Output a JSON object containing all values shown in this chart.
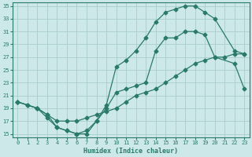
{
  "xlabel": "Humidex (Indice chaleur)",
  "background_color": "#cce8e8",
  "grid_color": "#aacccc",
  "line_color": "#2a7a6a",
  "xlim": [
    -0.5,
    23.5
  ],
  "ylim": [
    14.5,
    35.5
  ],
  "xticks": [
    0,
    1,
    2,
    3,
    4,
    5,
    6,
    7,
    8,
    9,
    10,
    11,
    12,
    13,
    14,
    15,
    16,
    17,
    18,
    19,
    20,
    21,
    22,
    23
  ],
  "yticks": [
    15,
    17,
    19,
    21,
    23,
    25,
    27,
    29,
    31,
    33,
    35
  ],
  "line1_x": [
    0,
    1,
    2,
    3,
    4,
    5,
    6,
    7,
    8,
    9,
    10,
    11,
    12,
    13,
    14,
    15,
    16,
    17,
    18,
    19,
    20,
    21,
    22,
    23
  ],
  "line1_y": [
    20,
    19.5,
    19,
    18,
    17,
    17,
    17,
    17.5,
    18,
    18.5,
    19,
    20,
    21,
    21.5,
    22,
    23,
    24,
    25,
    26,
    26.5,
    27,
    27,
    27.5,
    27.5
  ],
  "line2_x": [
    0,
    1,
    2,
    3,
    4,
    5,
    6,
    7,
    8,
    9,
    10,
    11,
    12,
    13,
    14,
    15,
    16,
    17,
    18,
    19,
    20,
    22,
    23
  ],
  "line2_y": [
    20,
    19.5,
    19,
    18,
    16,
    15.5,
    15,
    15,
    17,
    19.5,
    25.5,
    26.5,
    28,
    30,
    32.5,
    34,
    34.5,
    35,
    35,
    34,
    33,
    28,
    27.5
  ],
  "line3_x": [
    0,
    2,
    3,
    4,
    5,
    6,
    7,
    8,
    9,
    10,
    11,
    12,
    13,
    14,
    15,
    16,
    17,
    18,
    19,
    20,
    22,
    23
  ],
  "line3_y": [
    20,
    19,
    17.5,
    16,
    15.5,
    15,
    15.5,
    17,
    19,
    21.5,
    22,
    22.5,
    23,
    28,
    30,
    30,
    31,
    31,
    30.5,
    27,
    26,
    22
  ]
}
